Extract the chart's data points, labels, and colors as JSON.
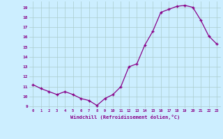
{
  "x": [
    0,
    1,
    2,
    3,
    4,
    5,
    6,
    7,
    8,
    9,
    10,
    11,
    12,
    13,
    14,
    15,
    16,
    17,
    18,
    19,
    20,
    21,
    22,
    23
  ],
  "y": [
    11.2,
    10.8,
    10.5,
    10.2,
    10.5,
    10.2,
    9.8,
    9.6,
    9.1,
    9.8,
    10.2,
    11.0,
    13.0,
    13.3,
    15.2,
    16.6,
    18.5,
    18.8,
    19.1,
    19.2,
    19.0,
    17.7,
    16.1,
    15.3
  ],
  "xlim": [
    -0.5,
    23.5
  ],
  "ylim": [
    8.8,
    19.6
  ],
  "yticks": [
    9,
    10,
    11,
    12,
    13,
    14,
    15,
    16,
    17,
    18,
    19
  ],
  "xticks": [
    0,
    1,
    2,
    3,
    4,
    5,
    6,
    7,
    8,
    9,
    10,
    11,
    12,
    13,
    14,
    15,
    16,
    17,
    18,
    19,
    20,
    21,
    22,
    23
  ],
  "xlabel": "Windchill (Refroidissement éolien,°C)",
  "line_color": "#880088",
  "marker_color": "#880088",
  "bg_color": "#cceeff",
  "grid_color": "#aacccc",
  "tick_label_color": "#880088",
  "axis_label_color": "#880088"
}
